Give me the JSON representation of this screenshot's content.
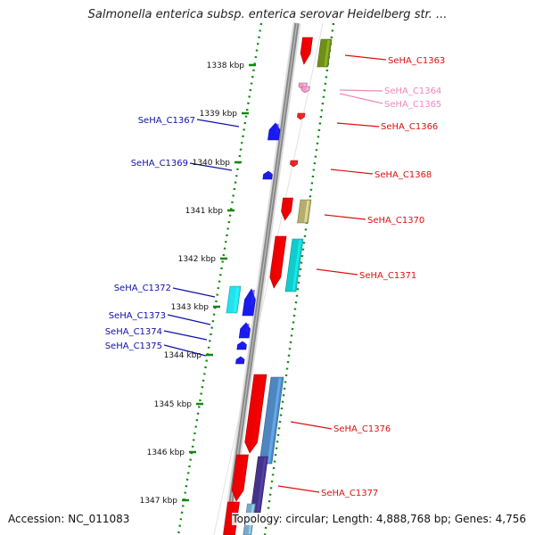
{
  "title": "Salmonella enterica subsp. enterica serovar Heidelberg str. ...",
  "footer": {
    "accession": "Accession: NC_011083",
    "summary": "Topology: circular; Length: 4,888,768 bp; Genes: 4,756"
  },
  "colors": {
    "forward_label": "#dd1111",
    "forward_faint_label": "#ee88bb",
    "reverse_label": "#1111aa",
    "backbone": "#888888",
    "ticks": "#118811"
  },
  "ticks": [
    "1338 kbp",
    "1339 kbp",
    "1340 kbp",
    "1341 kbp",
    "1342 kbp",
    "1343 kbp",
    "1344 kbp",
    "1345 kbp",
    "1346 kbp",
    "1347 kbp"
  ],
  "genes": [
    {
      "label": "SeHA_C1363",
      "strand": "forward"
    },
    {
      "label": "SeHA_C1364",
      "strand": "forward-faint"
    },
    {
      "label": "SeHA_C1365",
      "strand": "forward-faint"
    },
    {
      "label": "SeHA_C1366",
      "strand": "forward"
    },
    {
      "label": "SeHA_C1367",
      "strand": "reverse"
    },
    {
      "label": "SeHA_C1368",
      "strand": "forward"
    },
    {
      "label": "SeHA_C1369",
      "strand": "reverse"
    },
    {
      "label": "SeHA_C1370",
      "strand": "forward"
    },
    {
      "label": "SeHA_C1371",
      "strand": "forward"
    },
    {
      "label": "SeHA_C1372",
      "strand": "reverse"
    },
    {
      "label": "SeHA_C1373",
      "strand": "reverse"
    },
    {
      "label": "SeHA_C1374",
      "strand": "reverse"
    },
    {
      "label": "SeHA_C1375",
      "strand": "reverse"
    },
    {
      "label": "SeHA_C1376",
      "strand": "forward"
    },
    {
      "label": "SeHA_C1377",
      "strand": "forward"
    }
  ]
}
